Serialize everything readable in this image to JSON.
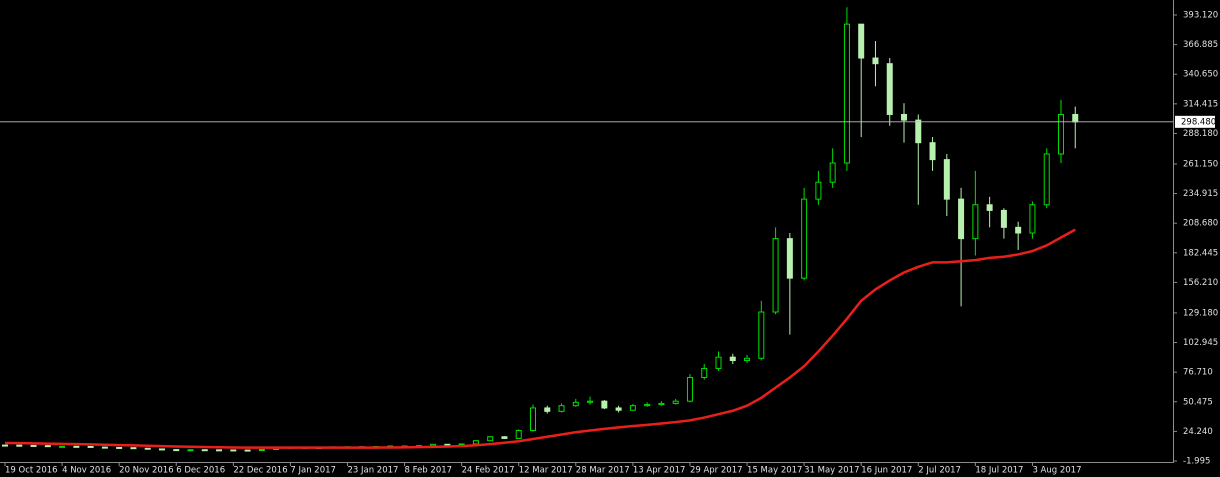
{
  "chart_data": {
    "type": "candlestick",
    "x": [
      "19 Oct 2016",
      "23 Oct 2016",
      "27 Oct 2016",
      "31 Oct 2016",
      "4 Nov 2016",
      "8 Nov 2016",
      "12 Nov 2016",
      "16 Nov 2016",
      "20 Nov 2016",
      "24 Nov 2016",
      "28 Nov 2016",
      "2 Dec 2016",
      "6 Dec 2016",
      "10 Dec 2016",
      "14 Dec 2016",
      "18 Dec 2016",
      "22 Dec 2016",
      "26 Dec 2016",
      "30 Dec 2016",
      "3 Jan 2017",
      "7 Jan 2017",
      "11 Jan 2017",
      "15 Jan 2017",
      "19 Jan 2017",
      "23 Jan 2017",
      "27 Jan 2017",
      "31 Jan 2017",
      "4 Feb 2017",
      "8 Feb 2017",
      "12 Feb 2017",
      "16 Feb 2017",
      "20 Feb 2017",
      "24 Feb 2017",
      "28 Feb 2017",
      "4 Mar 2017",
      "8 Mar 2017",
      "12 Mar 2017",
      "16 Mar 2017",
      "20 Mar 2017",
      "24 Mar 2017",
      "28 Mar 2017",
      "1 Apr 2017",
      "5 Apr 2017",
      "9 Apr 2017",
      "13 Apr 2017",
      "17 Apr 2017",
      "21 Apr 2017",
      "25 Apr 2017",
      "29 Apr 2017",
      "3 May 2017",
      "7 May 2017",
      "11 May 2017",
      "15 May 2017",
      "19 May 2017",
      "23 May 2017",
      "27 May 2017",
      "31 May 2017",
      "4 Jun 2017",
      "8 Jun 2017",
      "12 Jun 2017",
      "16 Jun 2017",
      "20 Jun 2017",
      "24 Jun 2017",
      "28 Jun 2017",
      "2 Jul 2017",
      "6 Jul 2017",
      "10 Jul 2017",
      "14 Jul 2017",
      "18 Jul 2017",
      "22 Jul 2017",
      "26 Jul 2017",
      "30 Jul 2017",
      "3 Aug 2017",
      "7 Aug 2017",
      "11 Aug 2017",
      "15 Aug 2017"
    ],
    "open": [
      12.1,
      12.0,
      11.8,
      11.6,
      11.0,
      11.0,
      10.9,
      10.3,
      10.0,
      9.8,
      9.3,
      8.7,
      8.1,
      7.8,
      8.0,
      7.9,
      7.8,
      7.7,
      7.4,
      8.2,
      9.6,
      10.2,
      10.0,
      9.9,
      10.5,
      10.6,
      10.5,
      10.8,
      11.3,
      11.3,
      11.6,
      12.8,
      12.5,
      13.1,
      16.0,
      19.5,
      18.0,
      25.0,
      45.0,
      42.0,
      47.0,
      50.0,
      51.0,
      45.0,
      43.0,
      47.0,
      48.0,
      49.0,
      51.0,
      72.0,
      80.0,
      90.0,
      87.0,
      89.0,
      130.0,
      195.0,
      160.0,
      230.0,
      245.0,
      262.0,
      385.0,
      355.0,
      350.0,
      305.0,
      300.0,
      280.0,
      265.0,
      230.0,
      195.0,
      225.0,
      220.0,
      205.0,
      200.0,
      225.0,
      270.0,
      305.0
    ],
    "high": [
      12.6,
      12.3,
      12.1,
      11.9,
      11.4,
      11.3,
      11.1,
      10.6,
      10.3,
      10.0,
      9.5,
      8.9,
      8.3,
      8.3,
      8.2,
      8.1,
      8.0,
      7.9,
      8.4,
      10.0,
      10.6,
      10.5,
      10.3,
      10.8,
      11.0,
      10.9,
      11.1,
      11.6,
      11.7,
      11.9,
      13.2,
      13.0,
      13.5,
      16.5,
      20.0,
      20.0,
      26.0,
      48.0,
      47.0,
      49.0,
      53.0,
      55.0,
      52.0,
      47.0,
      48.5,
      50.0,
      51.0,
      53.0,
      75.0,
      84.0,
      95.0,
      93.0,
      92.0,
      140.0,
      205.0,
      200.0,
      240.0,
      255.0,
      275.0,
      400.0,
      385.0,
      370.0,
      355.0,
      315.0,
      305.0,
      285.0,
      270.0,
      240.0,
      255.0,
      232.0,
      222.0,
      210.0,
      228.0,
      275.0,
      318.0,
      312.0
    ],
    "low": [
      11.6,
      11.5,
      11.2,
      10.8,
      10.7,
      10.6,
      10.0,
      9.8,
      9.5,
      9.1,
      8.5,
      7.9,
      7.6,
      7.7,
      7.6,
      7.5,
      7.4,
      7.2,
      7.3,
      8.0,
      9.5,
      9.7,
      9.6,
      9.8,
      10.3,
      10.2,
      10.3,
      10.7,
      11.0,
      11.1,
      11.4,
      12.2,
      12.3,
      12.9,
      15.5,
      17.5,
      17.8,
      24.0,
      40.0,
      41.0,
      46.0,
      48.0,
      44.0,
      41.0,
      42.5,
      46.0,
      47.0,
      48.0,
      50.0,
      70.0,
      78.0,
      84.0,
      85.0,
      87.0,
      128.0,
      110.0,
      158.0,
      225.0,
      240.0,
      255.0,
      285.0,
      330.0,
      295.0,
      280.0,
      225.0,
      255.0,
      215.0,
      135.0,
      180.0,
      205.0,
      195.0,
      185.0,
      195.0,
      222.0,
      262.0,
      275.0
    ],
    "close": [
      12.0,
      11.8,
      11.6,
      11.0,
      11.0,
      10.9,
      10.3,
      10.0,
      9.8,
      9.3,
      8.7,
      8.1,
      7.8,
      8.0,
      7.9,
      7.8,
      7.7,
      7.4,
      8.2,
      9.6,
      10.2,
      10.0,
      9.9,
      10.5,
      10.6,
      10.5,
      10.8,
      11.3,
      11.3,
      11.6,
      12.8,
      12.5,
      13.1,
      16.0,
      19.5,
      18.0,
      25.0,
      45.0,
      42.0,
      47.0,
      50.0,
      51.0,
      45.0,
      43.0,
      47.0,
      48.0,
      49.0,
      51.0,
      72.0,
      80.0,
      90.0,
      87.0,
      89.0,
      130.0,
      195.0,
      160.0,
      230.0,
      245.0,
      262.0,
      385.0,
      355.0,
      350.0,
      305.0,
      300.0,
      280.0,
      265.0,
      230.0,
      195.0,
      225.0,
      220.0,
      205.0,
      200.0,
      225.0,
      270.0,
      305.0,
      298.48
    ],
    "up_color": "#00e000",
    "down_color": "#b8f0b0",
    "ma": {
      "color": "#e8201c",
      "values": [
        14.0,
        13.8,
        13.6,
        13.4,
        13.2,
        13.0,
        12.7,
        12.4,
        12.1,
        11.8,
        11.5,
        11.2,
        10.9,
        10.6,
        10.4,
        10.2,
        10.0,
        9.9,
        9.8,
        9.8,
        9.8,
        9.8,
        9.8,
        9.8,
        9.8,
        9.8,
        9.9,
        10.0,
        10.1,
        10.3,
        10.5,
        10.8,
        11.2,
        12.0,
        13.0,
        14.2,
        15.5,
        17.5,
        19.5,
        21.5,
        23.5,
        25.0,
        26.5,
        27.8,
        29.0,
        30.0,
        31.2,
        32.5,
        34.0,
        36.5,
        39.5,
        42.5,
        47.0,
        54.0,
        63.0,
        72.0,
        82.0,
        95.0,
        109.0,
        124.0,
        140.0,
        150.0,
        158.0,
        165.0,
        170.0,
        174.0,
        174.0,
        175.0,
        176.0,
        178.0,
        179.0,
        181.0,
        184.0,
        189.0,
        196.0,
        203.0
      ]
    },
    "price_line": {
      "value": 298.48,
      "label": "298.480"
    },
    "xticks": [
      "19 Oct 2016",
      "4 Nov 2016",
      "20 Nov 2016",
      "6 Dec 2016",
      "22 Dec 2016",
      "7 Jan 2017",
      "23 Jan 2017",
      "8 Feb 2017",
      "24 Feb 2017",
      "12 Mar 2017",
      "28 Mar 2017",
      "13 Apr 2017",
      "29 Apr 2017",
      "15 May 2017",
      "31 May 2017",
      "16 Jun 2017",
      "2 Jul 2017",
      "18 Jul 2017",
      "3 Aug 2017"
    ],
    "ylim": [
      -2.88,
      404.64
    ],
    "yticks": [
      {
        "value": -1.995,
        "label": "-1.995"
      },
      {
        "value": 24.24,
        "label": "24.240"
      },
      {
        "value": 50.475,
        "label": "50.475"
      },
      {
        "value": 76.71,
        "label": "76.710"
      },
      {
        "value": 102.945,
        "label": "102.945"
      },
      {
        "value": 129.18,
        "label": "129.180"
      },
      {
        "value": 156.21,
        "label": "156.210"
      },
      {
        "value": 182.445,
        "label": "182.445"
      },
      {
        "value": 208.68,
        "label": "208.680"
      },
      {
        "value": 234.915,
        "label": "234.915"
      },
      {
        "value": 261.15,
        "label": "261.150"
      },
      {
        "value": 288.18,
        "label": "288.180"
      },
      {
        "value": 314.415,
        "label": "314.415"
      },
      {
        "value": 340.65,
        "label": "340.650"
      },
      {
        "value": 366.885,
        "label": "366.885"
      },
      {
        "value": 393.12,
        "label": "393.120"
      }
    ]
  }
}
